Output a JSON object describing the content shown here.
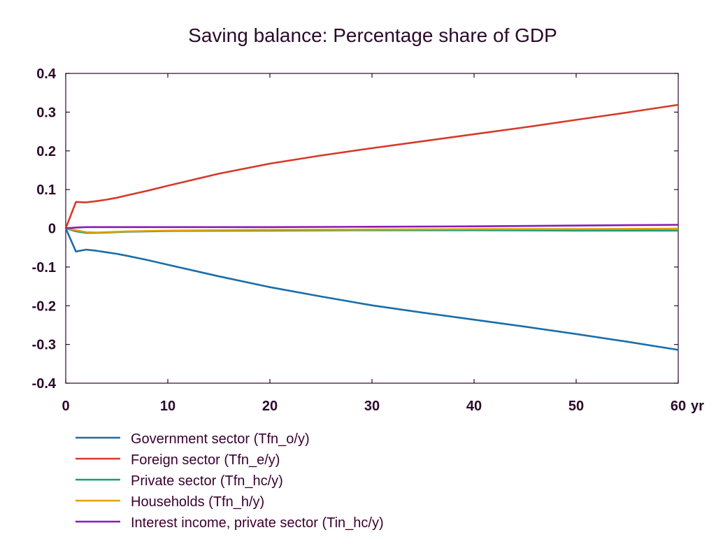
{
  "chart_data": {
    "type": "line",
    "title": "Saving balance: Percentage share of GDP",
    "xlabel": "",
    "ylabel": "",
    "x_unit_label": "yr",
    "xlim": [
      0,
      60
    ],
    "ylim": [
      -0.4,
      0.4
    ],
    "x_ticks": [
      "0",
      "10",
      "20",
      "30",
      "40",
      "50",
      "60"
    ],
    "y_ticks": [
      "0.4",
      "0.3",
      "0.2",
      "0.1",
      "0",
      "-0.1",
      "-0.2",
      "-0.3",
      "-0.4"
    ],
    "grid": false,
    "legend_position": "bottom",
    "series": [
      {
        "name": "Government sector (Tfn_o/y)",
        "color": "#1a6ea8",
        "points": [
          [
            0,
            0
          ],
          [
            1,
            -0.06
          ],
          [
            2,
            -0.055
          ],
          [
            3,
            -0.058
          ],
          [
            4,
            -0.062
          ],
          [
            5,
            -0.066
          ],
          [
            6,
            -0.071
          ],
          [
            8,
            -0.082
          ],
          [
            10,
            -0.094
          ],
          [
            15,
            -0.124
          ],
          [
            20,
            -0.152
          ],
          [
            25,
            -0.176
          ],
          [
            30,
            -0.199
          ],
          [
            35,
            -0.218
          ],
          [
            40,
            -0.236
          ],
          [
            45,
            -0.254
          ],
          [
            50,
            -0.273
          ],
          [
            55,
            -0.293
          ],
          [
            60,
            -0.314
          ]
        ]
      },
      {
        "name": "Foreign sector (Tfn_e/y)",
        "color": "#d63a2a",
        "points": [
          [
            0,
            0
          ],
          [
            1,
            0.068
          ],
          [
            2,
            0.067
          ],
          [
            3,
            0.07
          ],
          [
            4,
            0.074
          ],
          [
            5,
            0.079
          ],
          [
            6,
            0.085
          ],
          [
            8,
            0.097
          ],
          [
            10,
            0.11
          ],
          [
            15,
            0.141
          ],
          [
            20,
            0.167
          ],
          [
            25,
            0.188
          ],
          [
            30,
            0.207
          ],
          [
            35,
            0.225
          ],
          [
            40,
            0.243
          ],
          [
            45,
            0.261
          ],
          [
            50,
            0.28
          ],
          [
            55,
            0.299
          ],
          [
            60,
            0.319
          ]
        ]
      },
      {
        "name": "Private sector (Tfn_hc/y)",
        "color": "#1e9a7a",
        "points": [
          [
            0,
            0
          ],
          [
            1,
            -0.008
          ],
          [
            2,
            -0.012
          ],
          [
            3,
            -0.012
          ],
          [
            4,
            -0.011
          ],
          [
            6,
            -0.009
          ],
          [
            10,
            -0.007
          ],
          [
            20,
            -0.006
          ],
          [
            30,
            -0.005
          ],
          [
            40,
            -0.005
          ],
          [
            50,
            -0.006
          ],
          [
            60,
            -0.006
          ]
        ]
      },
      {
        "name": "Households (Tfn_h/y)",
        "color": "#e0a000",
        "points": [
          [
            0,
            0
          ],
          [
            1,
            -0.005
          ],
          [
            2,
            -0.01
          ],
          [
            3,
            -0.011
          ],
          [
            4,
            -0.01
          ],
          [
            6,
            -0.008
          ],
          [
            10,
            -0.006
          ],
          [
            20,
            -0.004
          ],
          [
            30,
            -0.003
          ],
          [
            40,
            -0.002
          ],
          [
            50,
            -0.002
          ],
          [
            60,
            -0.001
          ]
        ]
      },
      {
        "name": "Interest income, private sector (Tin_hc/y)",
        "color": "#8a1ab8",
        "points": [
          [
            0,
            0
          ],
          [
            1,
            0.002
          ],
          [
            2,
            0.003
          ],
          [
            5,
            0.003
          ],
          [
            10,
            0.003
          ],
          [
            20,
            0.003
          ],
          [
            30,
            0.004
          ],
          [
            40,
            0.005
          ],
          [
            50,
            0.007
          ],
          [
            60,
            0.009
          ]
        ]
      }
    ]
  }
}
